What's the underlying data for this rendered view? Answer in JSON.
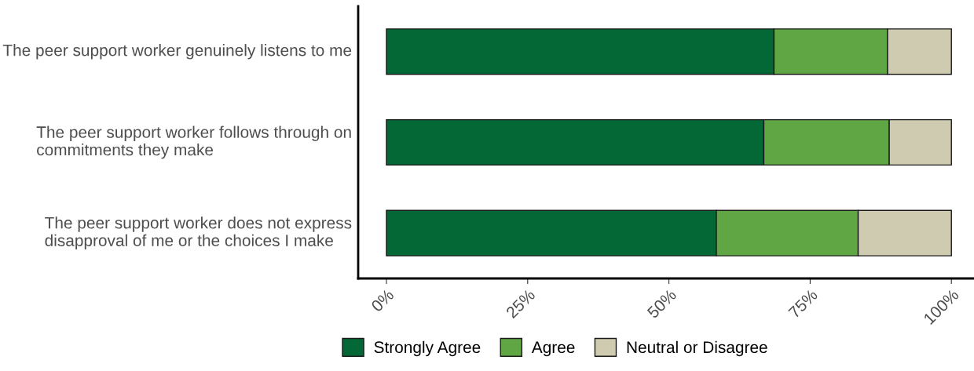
{
  "chart_data": {
    "type": "bar",
    "orientation": "horizontal",
    "stacked": true,
    "categories": [
      "The peer support worker genuinely listens to me",
      "The peer support worker follows through on commitments they make",
      "The peer support worker does not express disapproval of me or the choices I make"
    ],
    "series": [
      {
        "name": "Strongly Agree",
        "color": "#036835",
        "values": [
          68.6,
          66.8,
          58.4
        ]
      },
      {
        "name": "Agree",
        "color": "#61a644",
        "values": [
          20.1,
          22.2,
          25.1
        ]
      },
      {
        "name": "Neutral or Disagree",
        "color": "#cfcbb0",
        "values": [
          11.3,
          11.0,
          16.5
        ]
      }
    ],
    "xlim": [
      -5,
      104
    ],
    "xticks": [
      {
        "value": 0,
        "label": "0%"
      },
      {
        "value": 25,
        "label": "25%"
      },
      {
        "value": 50,
        "label": "50%"
      },
      {
        "value": 75,
        "label": "75%"
      },
      {
        "value": 100,
        "label": "100%"
      }
    ],
    "grid": false,
    "legend": "bottom"
  }
}
